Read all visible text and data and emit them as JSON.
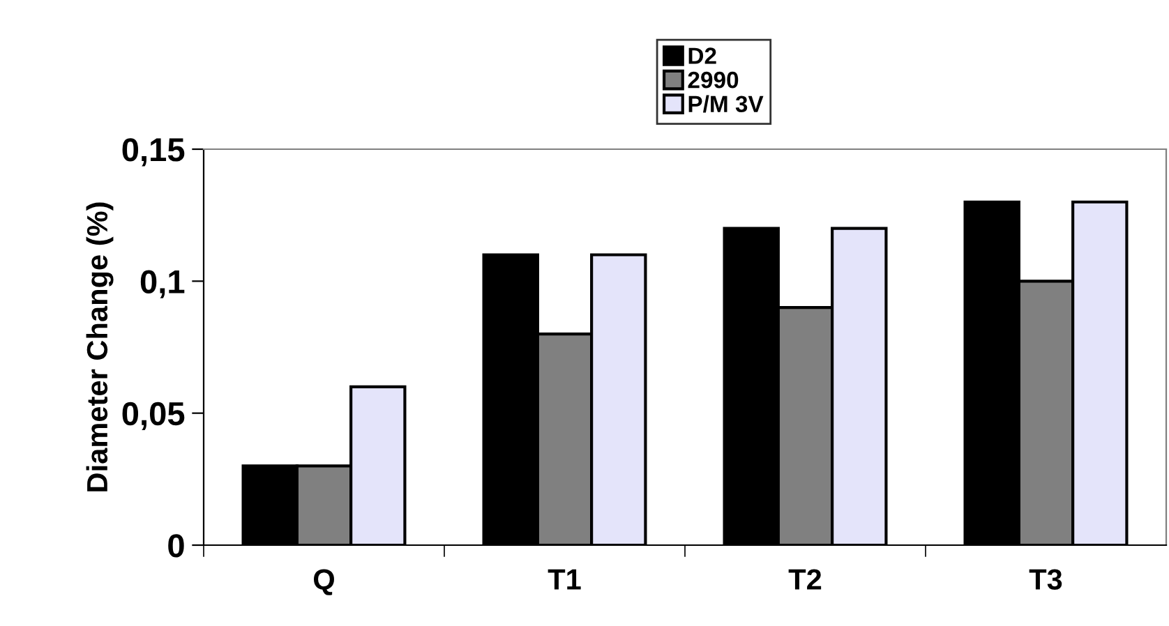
{
  "chart_data": {
    "type": "bar",
    "ylabel": "Diameter Change (%)",
    "categories": [
      "Q",
      "T1",
      "T2",
      "T3"
    ],
    "series": [
      {
        "name": "D2",
        "color": "#000000",
        "values": [
          0.03,
          0.11,
          0.12,
          0.13
        ]
      },
      {
        "name": "2990",
        "color": "#808080",
        "values": [
          0.03,
          0.08,
          0.09,
          0.1
        ]
      },
      {
        "name": "P/M 3V",
        "color": "#e4e4fa",
        "values": [
          0.06,
          0.11,
          0.12,
          0.13
        ]
      }
    ],
    "ylim": [
      0,
      0.15
    ],
    "yticks": [
      {
        "value": 0,
        "label": "0"
      },
      {
        "value": 0.05,
        "label": "0,05"
      },
      {
        "value": 0.1,
        "label": "0,1"
      },
      {
        "value": 0.15,
        "label": "0,15"
      }
    ],
    "grid": false,
    "legend": "top"
  }
}
